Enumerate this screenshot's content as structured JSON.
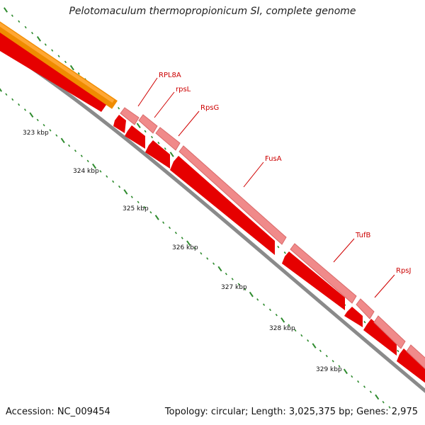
{
  "title": "Pelotomaculum thermopropionicum SI, complete genome",
  "footer": {
    "accession": "Accession: NC_009454",
    "summary": "Topology: circular; Length: 3,025,375 bp; Genes: 2,975"
  },
  "colors": {
    "orange_track": "#ff9900",
    "red_track": "#ff0000",
    "pink_track": "#f08080",
    "backbone": "#808080",
    "label_red": "#cc0000",
    "tick_green": "#228b22"
  },
  "ticks": [
    {
      "label": "323 kbp"
    },
    {
      "label": "324 kbp"
    },
    {
      "label": "325 kbp"
    },
    {
      "label": "326 kbp"
    },
    {
      "label": "327 kbp"
    },
    {
      "label": "328 kbp"
    },
    {
      "label": "329 kbp"
    }
  ],
  "genes": [
    {
      "name": "RPL8A"
    },
    {
      "name": "rpsL"
    },
    {
      "name": "RpsG"
    },
    {
      "name": "FusA"
    },
    {
      "name": "TufB"
    },
    {
      "name": "RpsJ"
    }
  ]
}
